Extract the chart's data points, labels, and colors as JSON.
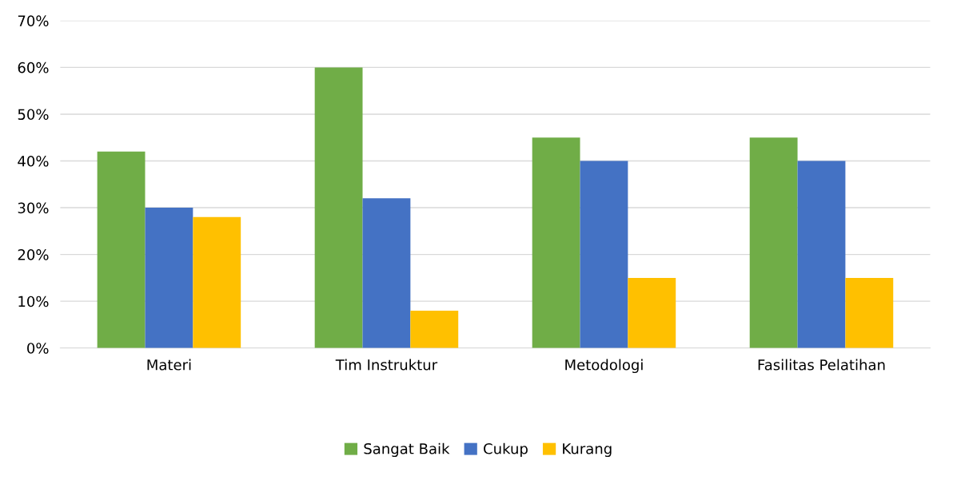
{
  "chart_data": {
    "type": "bar",
    "categories": [
      "Materi",
      "Tim Instruktur",
      "Metodologi",
      "Fasilitas Pelatihan"
    ],
    "series": [
      {
        "name": "Sangat Baik",
        "color": "#70ad47",
        "values": [
          42,
          60,
          45,
          45
        ]
      },
      {
        "name": "Cukup",
        "color": "#4472c4",
        "values": [
          30,
          32,
          40,
          40
        ]
      },
      {
        "name": "Kurang",
        "color": "#ffc000",
        "values": [
          28,
          8,
          15,
          15
        ]
      }
    ],
    "ylim": [
      0,
      70
    ],
    "yticks": [
      {
        "value": 0,
        "label": "0%"
      },
      {
        "value": 10,
        "label": "10%"
      },
      {
        "value": 20,
        "label": "20%"
      },
      {
        "value": 30,
        "label": "30%"
      },
      {
        "value": 40,
        "label": "40%"
      },
      {
        "value": 50,
        "label": "50%"
      },
      {
        "value": 60,
        "label": "60%"
      },
      {
        "value": 70,
        "label": "70%"
      }
    ],
    "grid": "y",
    "legend": "bottom"
  }
}
